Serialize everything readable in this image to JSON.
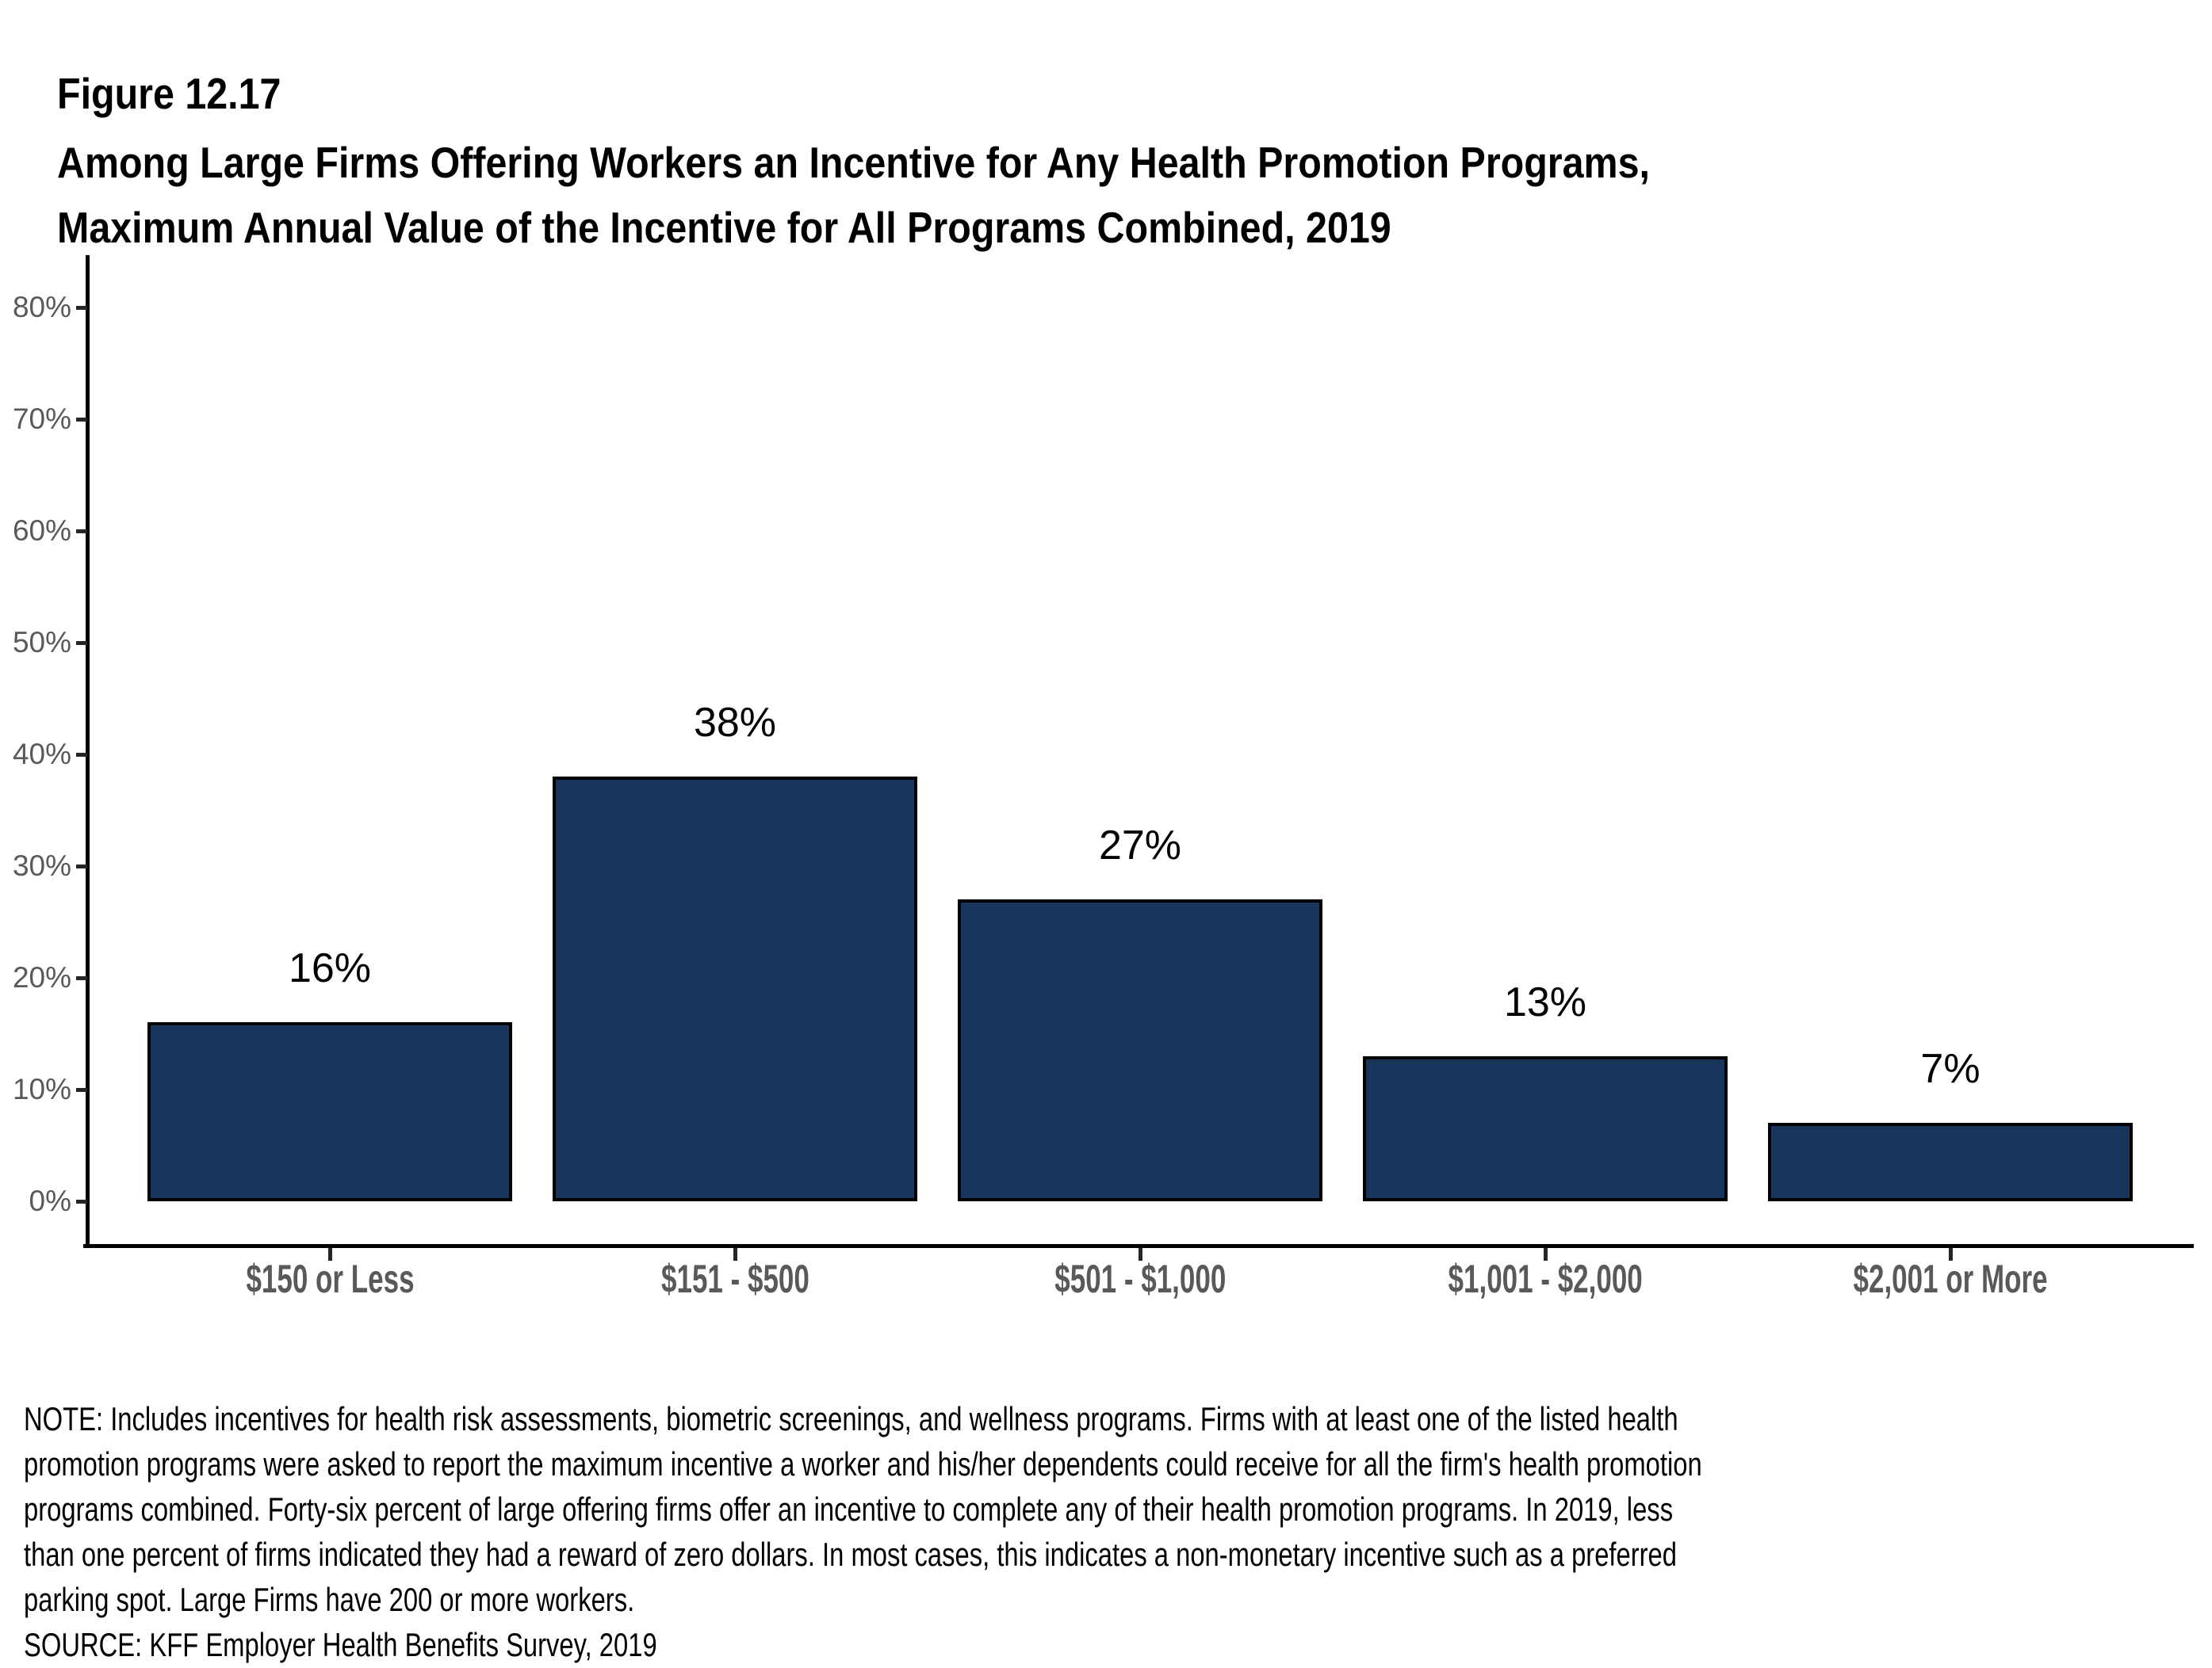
{
  "title": {
    "figure_label": "Figure 12.17",
    "line1": "Among Large Firms Offering Workers an Incentive for Any Health Promotion Programs,",
    "line2": "Maximum Annual Value of the Incentive for All Programs Combined, 2019"
  },
  "chart_data": {
    "type": "bar",
    "title": "Among Large Firms Offering Workers an Incentive for Any Health Promotion Programs, Maximum Annual Value of the Incentive for All Programs Combined, 2019",
    "categories": [
      "$150 or Less",
      "$151 - $500",
      "$501 - $1,000",
      "$1,001 - $2,000",
      "$2,001 or More"
    ],
    "values": [
      16,
      38,
      27,
      13,
      7
    ],
    "value_labels": [
      "16%",
      "38%",
      "27%",
      "13%",
      "7%"
    ],
    "xlabel": "",
    "ylabel": "",
    "ylim": [
      0,
      80
    ],
    "ytick_step": 10,
    "ytick_suffix": "%",
    "grid": false,
    "legend": false,
    "bar_color": "#16365C",
    "bar_border_color": "#000000"
  },
  "notes": {
    "lines": [
      "NOTE: Includes incentives for health risk assessments, biometric screenings, and wellness programs. Firms with at least one of the listed health",
      "promotion programs were asked to report the maximum incentive a worker and his/her dependents could receive for all the firm's health promotion",
      "programs combined. Forty-six percent of large offering firms offer an incentive to complete any of their health promotion programs. In 2019, less",
      "than one percent of firms indicated they had a reward of zero dollars. In most cases, this indicates a non-monetary incentive such as a preferred",
      "parking spot. Large Firms have 200 or more workers."
    ],
    "source": "SOURCE: KFF Employer Health Benefits Survey, 2019"
  },
  "colors": {
    "axis": "#000000",
    "axis_label": "#595959",
    "text": "#000000"
  }
}
